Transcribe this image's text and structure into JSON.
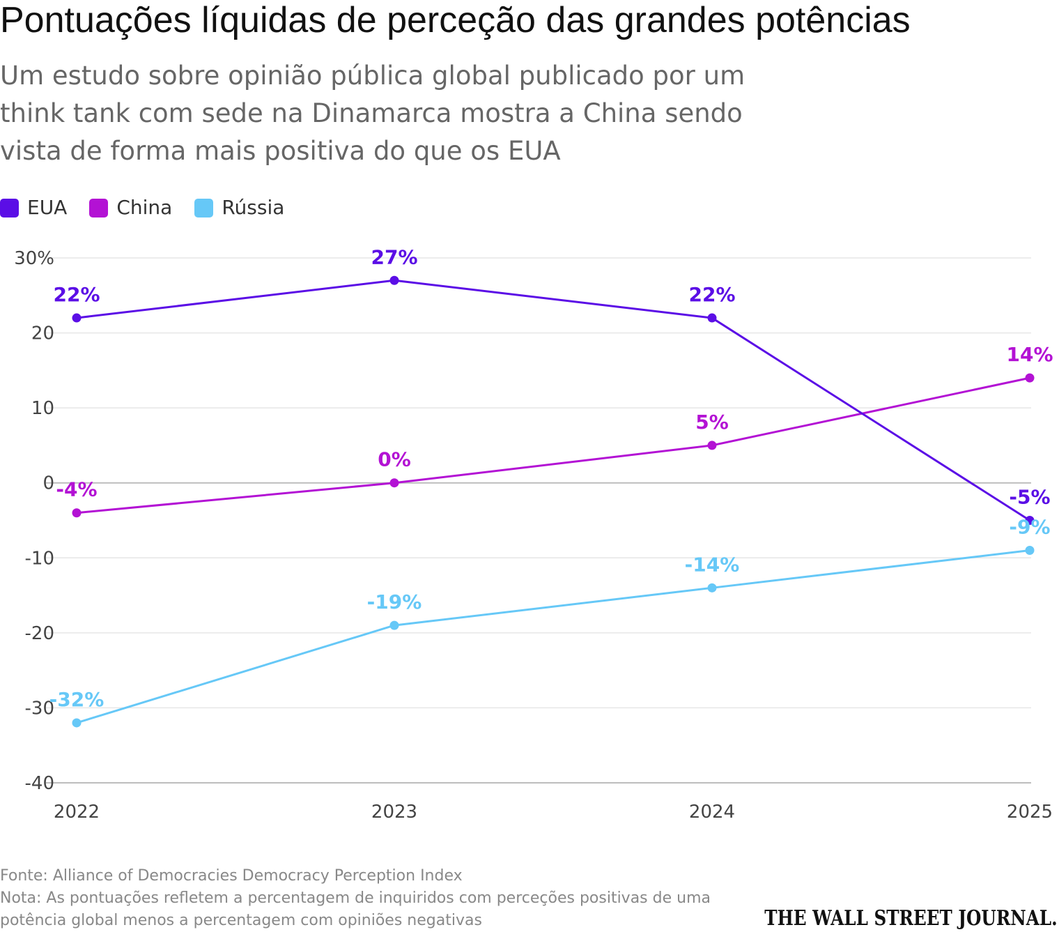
{
  "title": "Pontuações líquidas de perceção das grandes potências",
  "subtitle": "Um estudo sobre opinião pública global publicado por um think tank com sede na Dinamarca mostra a China sendo vista de forma mais positiva do que os EUA",
  "footer": {
    "source": "Fonte: Alliance of Democracies Democracy Perception Index",
    "note": "Nota: As pontuações refletem a percentagem de inquiridos com perceções positivas de uma potência global menos a percentagem com opiniões negativas",
    "logo": "THE WALL STREET JOURNAL."
  },
  "chart_data": {
    "type": "line",
    "x": [
      "2022",
      "2023",
      "2024",
      "2025"
    ],
    "ylim": [
      -40,
      30
    ],
    "yticks": [
      {
        "value": 30,
        "label": "30%"
      },
      {
        "value": 20,
        "label": "20"
      },
      {
        "value": 10,
        "label": "10"
      },
      {
        "value": 0,
        "label": "0"
      },
      {
        "value": -10,
        "label": "-10"
      },
      {
        "value": -20,
        "label": "-20"
      },
      {
        "value": -30,
        "label": "-30"
      },
      {
        "value": -40,
        "label": "-40"
      }
    ],
    "grid": true,
    "legend": "top-left",
    "series": [
      {
        "name": "EUA",
        "color": "#5b0ee6",
        "values": [
          22,
          27,
          22,
          -5
        ],
        "labels": [
          "22%",
          "27%",
          "22%",
          "-5%"
        ]
      },
      {
        "name": "China",
        "color": "#b312d4",
        "values": [
          -4,
          0,
          5,
          14
        ],
        "labels": [
          "-4%",
          "0%",
          "5%",
          "14%"
        ]
      },
      {
        "name": "Rússia",
        "color": "#66c8f7",
        "values": [
          -32,
          -19,
          -14,
          -9
        ],
        "labels": [
          "-32%",
          "-19%",
          "-14%",
          "-9%"
        ]
      }
    ]
  }
}
